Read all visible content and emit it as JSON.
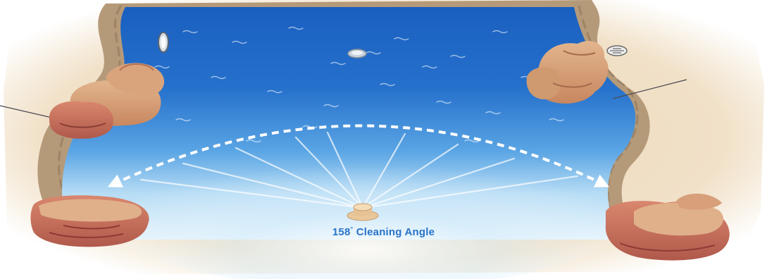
{
  "caption": {
    "angle_value": "158",
    "degree_mark": "°",
    "label": "Cleaning Angle"
  },
  "colors": {
    "deep_water": "#1a58b8",
    "mid_water": "#3a8ad8",
    "shallow_water": "#cfe8f8",
    "sand": "#ecd7b8",
    "rock": "#d6a27a",
    "rock_dark": "#a85a4a",
    "coping": "#b59a7a",
    "caption_text": "#2a73c8",
    "arc": "#ffffff"
  },
  "icons": [
    "pool-light-icon",
    "floor-drain-icon",
    "skimmer-drain-icon",
    "cleaning-nozzle-icon"
  ]
}
